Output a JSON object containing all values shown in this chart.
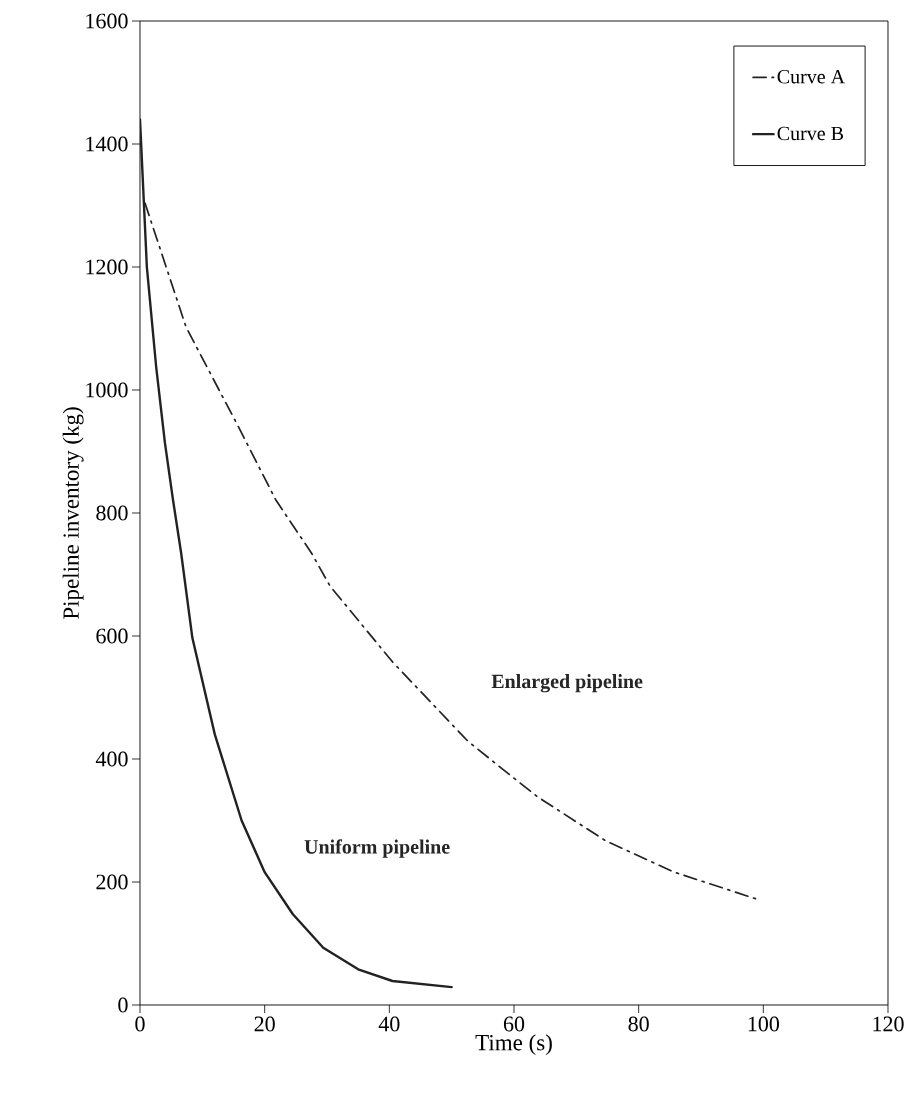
{
  "chart_data": {
    "type": "line",
    "xlabel": "Time (s)",
    "ylabel": "Pipeline inventory (kg)",
    "xlim": [
      0,
      120
    ],
    "xticks": [
      0,
      20,
      40,
      60,
      80,
      100,
      120
    ],
    "ylim": [
      0,
      1600
    ],
    "yticks": [
      0,
      200,
      400,
      600,
      800,
      1000,
      1200,
      1400,
      1600
    ],
    "legend": "top right",
    "grid": false,
    "series": [
      {
        "name": "Curve A",
        "color": "#222222",
        "line_style": "dashed",
        "x": [
          0.8,
          7.4,
          15.8,
          21.8,
          27.5,
          30.5,
          40.5,
          49.5,
          52.6,
          57.5,
          63.7,
          74.7,
          85.7,
          99
        ],
        "values": [
          1304,
          1102,
          940,
          821,
          735,
          681,
          558,
          462,
          429,
          389,
          339,
          267,
          216,
          172
        ]
      },
      {
        "name": "Curve B",
        "color": "#222222",
        "line_style": "solid",
        "x": [
          0,
          1.1,
          2.6,
          4,
          5.3,
          6.6,
          8.4,
          12,
          16.3,
          20,
          24.5,
          29.4,
          35,
          40.5,
          50
        ],
        "values": [
          1440,
          1200,
          1037,
          914,
          821,
          735,
          597,
          440,
          300,
          216,
          148,
          93,
          58,
          39,
          29
        ]
      }
    ],
    "annotations": [
      "Enlarged pipeline",
      "Uniform pipeline"
    ]
  }
}
